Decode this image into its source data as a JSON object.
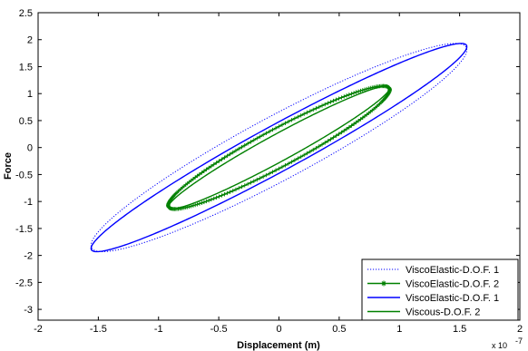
{
  "chart_data": {
    "type": "line",
    "title": "",
    "xlabel": "Displacement (m)",
    "ylabel": "Force",
    "x_exponent": "x 10",
    "x_exponent_power": "-7",
    "xlim": [
      -2,
      2
    ],
    "ylim": [
      -3.2,
      2.5
    ],
    "x_ticks": [
      "-2",
      "-1.5",
      "-1",
      "-0.5",
      "0",
      "0.5",
      "1",
      "1.5",
      "2"
    ],
    "y_ticks": [
      "2.5",
      "2",
      "1.5",
      "1",
      "0.5",
      "0",
      "-0.5",
      "-1",
      "-1.5",
      "-2",
      "-2.5",
      "-3"
    ],
    "grid": false,
    "legend_position": "bottom-right",
    "series": [
      {
        "name": "ViscoElastic-D.O.F. 1",
        "color": "#0000ff",
        "style": "dotted",
        "marker": "none",
        "shape": "ellipse",
        "center": [
          0.0,
          0.0
        ],
        "x_amplitude": 1.56,
        "y_amplitude": 1.93,
        "phase": -0.35
      },
      {
        "name": "ViscoElastic-D.O.F. 2",
        "color": "#008000",
        "style": "solid",
        "marker": "star",
        "shape": "ellipse",
        "center": [
          0.0,
          0.0
        ],
        "x_amplitude": 0.92,
        "y_amplitude": 1.14,
        "phase": -0.35
      },
      {
        "name": "ViscoElastic-D.O.F. 1",
        "color": "#0000ff",
        "style": "solid",
        "marker": "none",
        "shape": "ellipse",
        "center": [
          0.0,
          0.0
        ],
        "x_amplitude": 1.56,
        "y_amplitude": 1.93,
        "phase": 0.25
      },
      {
        "name": "Viscous-D.O.F. 2",
        "color": "#008000",
        "style": "solid",
        "marker": "none",
        "shape": "ellipse",
        "center": [
          0.0,
          0.0
        ],
        "x_amplitude": 0.92,
        "y_amplitude": 1.14,
        "phase": 0.25
      }
    ]
  }
}
